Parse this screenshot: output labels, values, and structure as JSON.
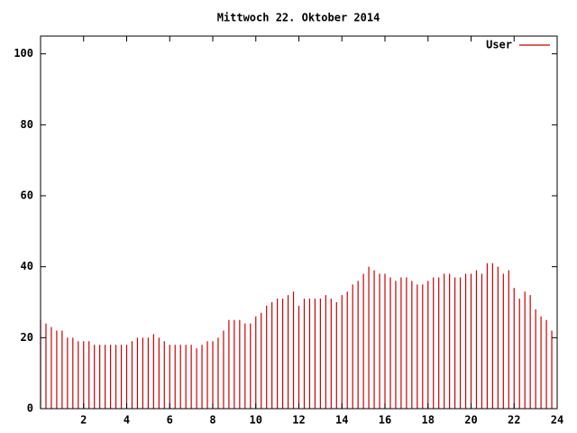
{
  "chart_data": {
    "type": "impulse",
    "title": "Mittwoch 22. Oktober 2014",
    "x": [
      0,
      0.25,
      0.5,
      0.75,
      1,
      1.25,
      1.5,
      1.75,
      2,
      2.25,
      2.5,
      2.75,
      3,
      3.25,
      3.5,
      3.75,
      4,
      4.25,
      4.5,
      4.75,
      5,
      5.25,
      5.5,
      5.75,
      6,
      6.25,
      6.5,
      6.75,
      7,
      7.25,
      7.5,
      7.75,
      8,
      8.25,
      8.5,
      8.75,
      9,
      9.25,
      9.5,
      9.75,
      10,
      10.25,
      10.5,
      10.75,
      11,
      11.25,
      11.5,
      11.75,
      12,
      12.25,
      12.5,
      12.75,
      13,
      13.25,
      13.5,
      13.75,
      14,
      14.25,
      14.5,
      14.75,
      15,
      15.25,
      15.5,
      15.75,
      16,
      16.25,
      16.5,
      16.75,
      17,
      17.25,
      17.5,
      17.75,
      18,
      18.25,
      18.5,
      18.75,
      19,
      19.25,
      19.5,
      19.75,
      20,
      20.25,
      20.5,
      20.75,
      21,
      21.25,
      21.5,
      21.75,
      22,
      22.25,
      22.5,
      22.75,
      23,
      23.25,
      23.5,
      23.75
    ],
    "series": [
      {
        "name": "User",
        "color": "#cc0000",
        "values": [
          25,
          24,
          23,
          22,
          22,
          20,
          20,
          19,
          19,
          19,
          18,
          18,
          18,
          18,
          18,
          18,
          18,
          19,
          20,
          20,
          20,
          21,
          20,
          19,
          18,
          18,
          18,
          18,
          18,
          17,
          18,
          19,
          19,
          20,
          22,
          25,
          25,
          25,
          24,
          24,
          26,
          27,
          29,
          30,
          31,
          31,
          32,
          33,
          29,
          31,
          31,
          31,
          31,
          32,
          31,
          30,
          32,
          33,
          35,
          36,
          38,
          40,
          39,
          38,
          38,
          37,
          36,
          37,
          37,
          36,
          35,
          35,
          36,
          37,
          37,
          38,
          38,
          37,
          37,
          38,
          38,
          39,
          38,
          41,
          41,
          40,
          38,
          39,
          34,
          31,
          33,
          32,
          28,
          26,
          25,
          22
        ]
      }
    ],
    "xlim": [
      0,
      24
    ],
    "ylim": [
      0,
      105
    ],
    "xticks": [
      2,
      4,
      6,
      8,
      10,
      12,
      14,
      16,
      18,
      20,
      22,
      24
    ],
    "yticks": [
      0,
      20,
      40,
      60,
      80,
      100
    ],
    "legend": "top-right"
  }
}
